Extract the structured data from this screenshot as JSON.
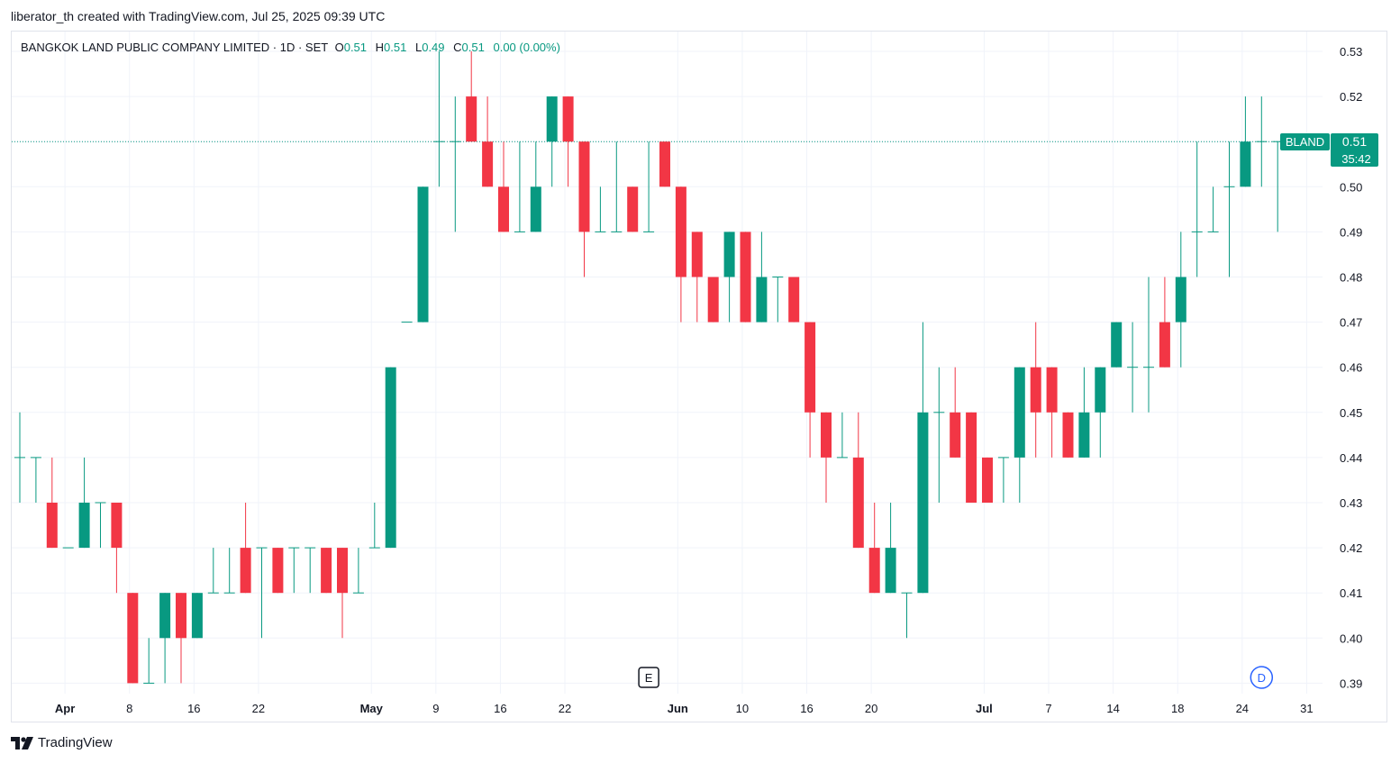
{
  "header": {
    "credit": "liberator_th created with TradingView.com, Jul 25, 2025 09:39 UTC"
  },
  "legend": {
    "symbol_desc": "BANGKOK LAND PUBLIC COMPANY LIMITED · 1D · SET",
    "o_label": "O",
    "o_value": "0.51",
    "h_label": "H",
    "h_value": "0.51",
    "l_label": "L",
    "l_value": "0.49",
    "c_label": "C",
    "c_value": "0.51",
    "change": "0.00 (0.00%)"
  },
  "price_label": {
    "ticker": "BLAND",
    "price": "0.51",
    "countdown": "35:42"
  },
  "markers": {
    "earnings": "E",
    "dividend": "D"
  },
  "footer": {
    "brand": "TradingView"
  },
  "colors": {
    "up": "#089981",
    "down": "#f23645",
    "grid": "#f0f3fa",
    "axis_text": "#131722",
    "marker_blue": "#2962ff"
  },
  "chart_data": {
    "type": "candlestick",
    "timeframe": "1D",
    "ylim": [
      0.388,
      0.534
    ],
    "y_ticks": [
      "0.53",
      "0.52",
      "0.51",
      "0.50",
      "0.49",
      "0.48",
      "0.47",
      "0.46",
      "0.45",
      "0.44",
      "0.43",
      "0.42",
      "0.41",
      "0.40",
      "0.39"
    ],
    "x_ticks": [
      {
        "label": "Apr",
        "bold": true,
        "at": 2.8
      },
      {
        "label": "8",
        "bold": false,
        "at": 6.8
      },
      {
        "label": "16",
        "bold": false,
        "at": 10.8
      },
      {
        "label": "22",
        "bold": false,
        "at": 14.8
      },
      {
        "label": "May",
        "bold": true,
        "at": 21.8
      },
      {
        "label": "9",
        "bold": false,
        "at": 25.8
      },
      {
        "label": "16",
        "bold": false,
        "at": 29.8
      },
      {
        "label": "22",
        "bold": false,
        "at": 33.8
      },
      {
        "label": "Jun",
        "bold": true,
        "at": 40.8
      },
      {
        "label": "10",
        "bold": false,
        "at": 44.8
      },
      {
        "label": "16",
        "bold": false,
        "at": 48.8
      },
      {
        "label": "20",
        "bold": false,
        "at": 52.8
      },
      {
        "label": "Jul",
        "bold": true,
        "at": 59.8
      },
      {
        "label": "7",
        "bold": false,
        "at": 63.8
      },
      {
        "label": "14",
        "bold": false,
        "at": 67.8
      },
      {
        "label": "18",
        "bold": false,
        "at": 71.8
      },
      {
        "label": "24",
        "bold": false,
        "at": 75.8
      },
      {
        "label": "31",
        "bold": false,
        "at": 79.8
      }
    ],
    "candles": [
      [
        0.44,
        0.45,
        0.43,
        0.44
      ],
      [
        0.44,
        0.44,
        0.43,
        0.44
      ],
      [
        0.43,
        0.44,
        0.42,
        0.42
      ],
      [
        0.42,
        0.42,
        0.42,
        0.42
      ],
      [
        0.42,
        0.44,
        0.42,
        0.43
      ],
      [
        0.43,
        0.43,
        0.42,
        0.43
      ],
      [
        0.43,
        0.43,
        0.41,
        0.42
      ],
      [
        0.41,
        0.41,
        0.39,
        0.39
      ],
      [
        0.39,
        0.4,
        0.39,
        0.39
      ],
      [
        0.4,
        0.41,
        0.39,
        0.41
      ],
      [
        0.41,
        0.41,
        0.39,
        0.4
      ],
      [
        0.4,
        0.41,
        0.4,
        0.41
      ],
      [
        0.41,
        0.42,
        0.41,
        0.41
      ],
      [
        0.41,
        0.42,
        0.41,
        0.41
      ],
      [
        0.42,
        0.43,
        0.41,
        0.41
      ],
      [
        0.42,
        0.42,
        0.4,
        0.42
      ],
      [
        0.42,
        0.42,
        0.41,
        0.41
      ],
      [
        0.42,
        0.42,
        0.41,
        0.42
      ],
      [
        0.42,
        0.42,
        0.41,
        0.42
      ],
      [
        0.42,
        0.42,
        0.41,
        0.41
      ],
      [
        0.42,
        0.42,
        0.4,
        0.41
      ],
      [
        0.41,
        0.42,
        0.41,
        0.41
      ],
      [
        0.42,
        0.43,
        0.42,
        0.42
      ],
      [
        0.42,
        0.46,
        0.42,
        0.46
      ],
      [
        0.47,
        0.47,
        0.47,
        0.47
      ],
      [
        0.47,
        0.5,
        0.47,
        0.5
      ],
      [
        0.51,
        0.53,
        0.5,
        0.51
      ],
      [
        0.51,
        0.52,
        0.49,
        0.51
      ],
      [
        0.52,
        0.53,
        0.51,
        0.51
      ],
      [
        0.51,
        0.52,
        0.5,
        0.5
      ],
      [
        0.5,
        0.51,
        0.49,
        0.49
      ],
      [
        0.49,
        0.51,
        0.49,
        0.49
      ],
      [
        0.49,
        0.51,
        0.49,
        0.5
      ],
      [
        0.51,
        0.52,
        0.5,
        0.52
      ],
      [
        0.52,
        0.52,
        0.5,
        0.51
      ],
      [
        0.51,
        0.51,
        0.48,
        0.49
      ],
      [
        0.49,
        0.5,
        0.49,
        0.49
      ],
      [
        0.49,
        0.51,
        0.49,
        0.49
      ],
      [
        0.5,
        0.5,
        0.49,
        0.49
      ],
      [
        0.49,
        0.51,
        0.49,
        0.49
      ],
      [
        0.51,
        0.51,
        0.5,
        0.5
      ],
      [
        0.5,
        0.5,
        0.47,
        0.48
      ],
      [
        0.49,
        0.49,
        0.47,
        0.48
      ],
      [
        0.48,
        0.48,
        0.47,
        0.47
      ],
      [
        0.48,
        0.49,
        0.47,
        0.49
      ],
      [
        0.49,
        0.49,
        0.47,
        0.47
      ],
      [
        0.47,
        0.49,
        0.47,
        0.48
      ],
      [
        0.48,
        0.48,
        0.47,
        0.48
      ],
      [
        0.48,
        0.48,
        0.47,
        0.47
      ],
      [
        0.47,
        0.47,
        0.44,
        0.45
      ],
      [
        0.45,
        0.45,
        0.43,
        0.44
      ],
      [
        0.44,
        0.45,
        0.44,
        0.44
      ],
      [
        0.44,
        0.45,
        0.42,
        0.42
      ],
      [
        0.42,
        0.43,
        0.41,
        0.41
      ],
      [
        0.41,
        0.43,
        0.41,
        0.42
      ],
      [
        0.41,
        0.41,
        0.4,
        0.41
      ],
      [
        0.41,
        0.47,
        0.41,
        0.45
      ],
      [
        0.45,
        0.46,
        0.43,
        0.45
      ],
      [
        0.45,
        0.46,
        0.44,
        0.44
      ],
      [
        0.45,
        0.45,
        0.43,
        0.43
      ],
      [
        0.44,
        0.44,
        0.43,
        0.43
      ],
      [
        0.44,
        0.44,
        0.43,
        0.44
      ],
      [
        0.44,
        0.46,
        0.43,
        0.46
      ],
      [
        0.46,
        0.47,
        0.44,
        0.45
      ],
      [
        0.46,
        0.46,
        0.44,
        0.45
      ],
      [
        0.45,
        0.45,
        0.44,
        0.44
      ],
      [
        0.44,
        0.46,
        0.44,
        0.45
      ],
      [
        0.45,
        0.46,
        0.44,
        0.46
      ],
      [
        0.46,
        0.47,
        0.46,
        0.47
      ],
      [
        0.46,
        0.47,
        0.45,
        0.46
      ],
      [
        0.46,
        0.48,
        0.45,
        0.46
      ],
      [
        0.47,
        0.48,
        0.46,
        0.46
      ],
      [
        0.47,
        0.49,
        0.46,
        0.48
      ],
      [
        0.49,
        0.51,
        0.48,
        0.49
      ],
      [
        0.49,
        0.5,
        0.49,
        0.49
      ],
      [
        0.5,
        0.51,
        0.48,
        0.5
      ],
      [
        0.5,
        0.52,
        0.5,
        0.51
      ],
      [
        0.51,
        0.52,
        0.5,
        0.51
      ],
      [
        0.51,
        0.51,
        0.49,
        0.51
      ]
    ],
    "last_price": 0.51,
    "earnings_marker_at": 39.0,
    "dividend_marker_at": 77.0
  }
}
